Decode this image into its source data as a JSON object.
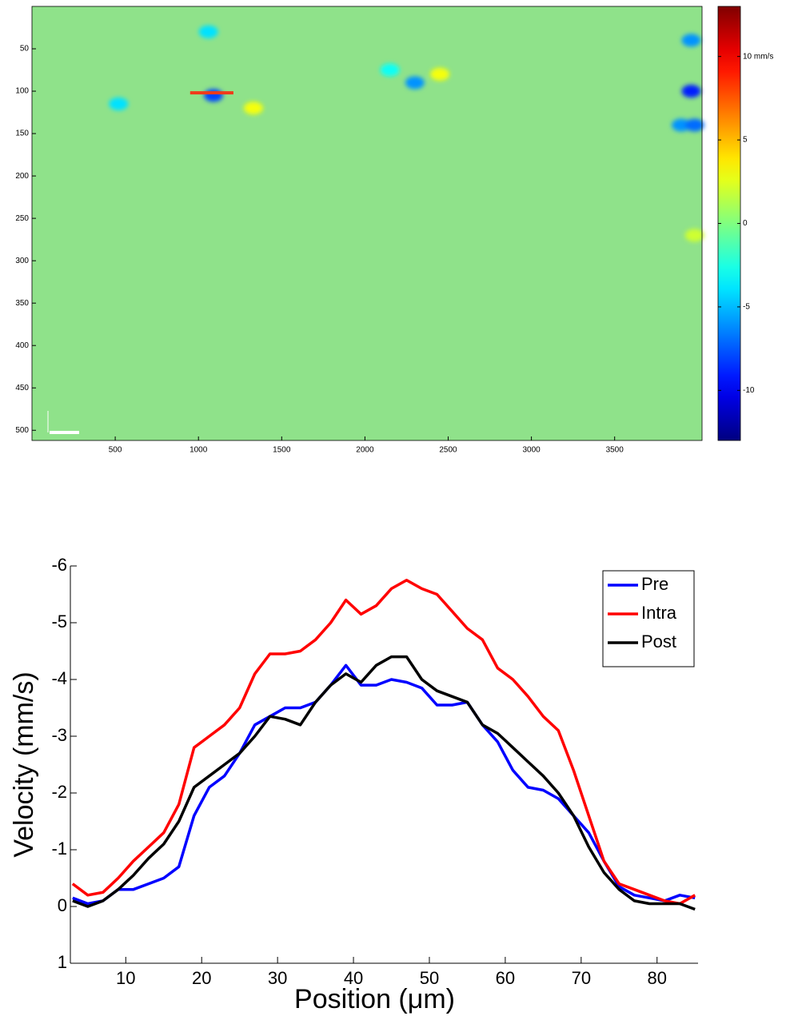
{
  "chart_data": [
    {
      "type": "heatmap",
      "xlim": [
        0,
        4025
      ],
      "xticks": [
        500,
        1000,
        1500,
        2000,
        2500,
        3000,
        3500
      ],
      "ylim": [
        512,
        0
      ],
      "yticks": [
        50,
        100,
        150,
        200,
        250,
        300,
        350,
        400,
        450,
        500
      ],
      "clim": [
        -13,
        13
      ],
      "cticks": [
        -10,
        -5,
        0,
        5,
        {
          "value": 10,
          "label": "10 mm/s"
        }
      ],
      "colormap": "jet",
      "spots": [
        {
          "x": 1090,
          "y": 105,
          "value": -8
        },
        {
          "x": 1060,
          "y": 30,
          "value": -4
        },
        {
          "x": 520,
          "y": 115,
          "value": -4
        },
        {
          "x": 2300,
          "y": 90,
          "value": -6
        },
        {
          "x": 2150,
          "y": 75,
          "value": -3
        },
        {
          "x": 2450,
          "y": 80,
          "value": 3
        },
        {
          "x": 1330,
          "y": 120,
          "value": 3
        },
        {
          "x": 3960,
          "y": 40,
          "value": -6
        },
        {
          "x": 3960,
          "y": 100,
          "value": -9
        },
        {
          "x": 3900,
          "y": 140,
          "value": -6
        },
        {
          "x": 3980,
          "y": 140,
          "value": -7
        },
        {
          "x": 3980,
          "y": 270,
          "value": 2
        }
      ],
      "profile_line": {
        "x": [
          950,
          1210
        ],
        "y": 102,
        "color": "#f03a1a"
      }
    },
    {
      "type": "line",
      "xlabel": "Position (μm)",
      "ylabel": "Velocity (mm/s)",
      "xlim": [
        2.7,
        85.4
      ],
      "xticks": [
        10,
        20,
        30,
        40,
        50,
        60,
        70,
        80
      ],
      "ylim": [
        1,
        -6
      ],
      "yticks": [
        -6,
        -5,
        -4,
        -3,
        -2,
        -1,
        0,
        1
      ],
      "legend": "upper right",
      "x": [
        3,
        5,
        7,
        9,
        11,
        13,
        15,
        17,
        19,
        21,
        23,
        25,
        27,
        29,
        31,
        33,
        35,
        37,
        39,
        41,
        43,
        45,
        47,
        49,
        51,
        53,
        55,
        57,
        59,
        61,
        63,
        65,
        67,
        69,
        71,
        73,
        75,
        77,
        79,
        81,
        83,
        85
      ],
      "series": [
        {
          "name": "Pre",
          "color": "#0000ff",
          "values": [
            -0.15,
            -0.05,
            -0.1,
            -0.3,
            -0.3,
            -0.4,
            -0.5,
            -0.7,
            -1.6,
            -2.1,
            -2.3,
            -2.7,
            -3.2,
            -3.35,
            -3.5,
            -3.5,
            -3.6,
            -3.9,
            -4.25,
            -3.9,
            -3.9,
            -4.0,
            -3.95,
            -3.85,
            -3.55,
            -3.55,
            -3.6,
            -3.2,
            -2.9,
            -2.4,
            -2.1,
            -2.05,
            -1.9,
            -1.6,
            -1.3,
            -0.8,
            -0.35,
            -0.2,
            -0.15,
            -0.1,
            -0.2,
            -0.15
          ]
        },
        {
          "name": "Intra",
          "color": "#ff0000",
          "values": [
            -0.4,
            -0.2,
            -0.25,
            -0.5,
            -0.8,
            -1.05,
            -1.3,
            -1.8,
            -2.8,
            -3.0,
            -3.2,
            -3.5,
            -4.1,
            -4.45,
            -4.45,
            -4.5,
            -4.7,
            -5.0,
            -5.4,
            -5.15,
            -5.3,
            -5.6,
            -5.75,
            -5.6,
            -5.5,
            -5.2,
            -4.9,
            -4.7,
            -4.2,
            -4.0,
            -3.7,
            -3.35,
            -3.1,
            -2.4,
            -1.6,
            -0.8,
            -0.4,
            -0.3,
            -0.2,
            -0.1,
            -0.05,
            -0.2
          ]
        },
        {
          "name": "Post",
          "color": "#000000",
          "values": [
            -0.1,
            0.0,
            -0.1,
            -0.3,
            -0.55,
            -0.85,
            -1.1,
            -1.5,
            -2.1,
            -2.3,
            -2.5,
            -2.7,
            -3.0,
            -3.35,
            -3.3,
            -3.2,
            -3.6,
            -3.9,
            -4.1,
            -3.95,
            -4.25,
            -4.4,
            -4.4,
            -4.0,
            -3.8,
            -3.7,
            -3.6,
            -3.2,
            -3.05,
            -2.8,
            -2.55,
            -2.3,
            -2.0,
            -1.6,
            -1.05,
            -0.6,
            -0.3,
            -0.1,
            -0.05,
            -0.05,
            -0.05,
            0.05
          ]
        }
      ]
    }
  ]
}
